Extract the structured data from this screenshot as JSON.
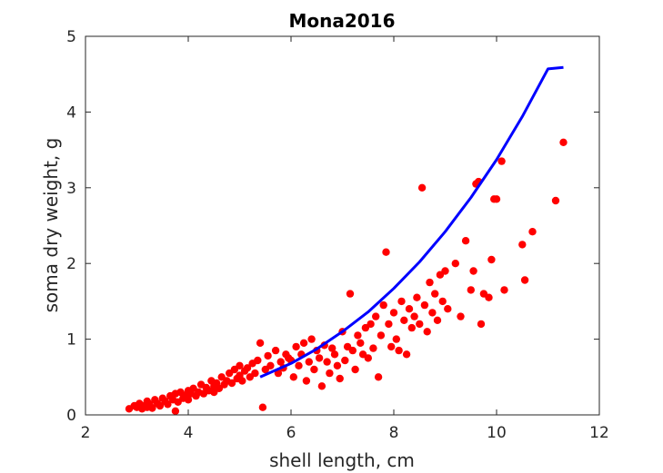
{
  "chart_data": {
    "type": "scatter",
    "title": "Mona2016",
    "xlabel": "shell length, cm",
    "ylabel": "soma dry weight, g",
    "xlim": [
      2,
      12
    ],
    "ylim": [
      0,
      5
    ],
    "xticks": [
      2,
      4,
      6,
      8,
      10,
      12
    ],
    "yticks": [
      0,
      1,
      2,
      3,
      4,
      5
    ],
    "grid": false,
    "box": true,
    "legend": "none",
    "colors": {
      "points": "#ff0000",
      "curve": "#0000ff",
      "axes": "#262626"
    },
    "series": [
      {
        "kind": "points",
        "points": [
          [
            2.85,
            0.08
          ],
          [
            2.95,
            0.12
          ],
          [
            3.0,
            0.1
          ],
          [
            3.05,
            0.15
          ],
          [
            3.1,
            0.08
          ],
          [
            3.15,
            0.12
          ],
          [
            3.2,
            0.18
          ],
          [
            3.2,
            0.1
          ],
          [
            3.25,
            0.14
          ],
          [
            3.3,
            0.09
          ],
          [
            3.35,
            0.2
          ],
          [
            3.4,
            0.15
          ],
          [
            3.45,
            0.12
          ],
          [
            3.5,
            0.22
          ],
          [
            3.55,
            0.18
          ],
          [
            3.6,
            0.14
          ],
          [
            3.65,
            0.25
          ],
          [
            3.7,
            0.2
          ],
          [
            3.75,
            0.05
          ],
          [
            3.75,
            0.28
          ],
          [
            3.8,
            0.17
          ],
          [
            3.85,
            0.3
          ],
          [
            3.9,
            0.22
          ],
          [
            3.95,
            0.26
          ],
          [
            4.0,
            0.32
          ],
          [
            4.0,
            0.2
          ],
          [
            4.05,
            0.28
          ],
          [
            4.1,
            0.35
          ],
          [
            4.15,
            0.25
          ],
          [
            4.2,
            0.3
          ],
          [
            4.25,
            0.4
          ],
          [
            4.3,
            0.28
          ],
          [
            4.35,
            0.36
          ],
          [
            4.4,
            0.32
          ],
          [
            4.45,
            0.45
          ],
          [
            4.5,
            0.38
          ],
          [
            4.5,
            0.3
          ],
          [
            4.55,
            0.42
          ],
          [
            4.6,
            0.35
          ],
          [
            4.65,
            0.5
          ],
          [
            4.7,
            0.4
          ],
          [
            4.75,
            0.45
          ],
          [
            4.8,
            0.55
          ],
          [
            4.85,
            0.42
          ],
          [
            4.9,
            0.6
          ],
          [
            4.95,
            0.48
          ],
          [
            5.0,
            0.52
          ],
          [
            5.0,
            0.65
          ],
          [
            5.05,
            0.45
          ],
          [
            5.1,
            0.58
          ],
          [
            5.15,
            0.62
          ],
          [
            5.2,
            0.5
          ],
          [
            5.25,
            0.68
          ],
          [
            5.3,
            0.55
          ],
          [
            5.35,
            0.72
          ],
          [
            5.4,
            0.95
          ],
          [
            5.45,
            0.1
          ],
          [
            5.5,
            0.6
          ],
          [
            5.55,
            0.78
          ],
          [
            5.6,
            0.65
          ],
          [
            5.7,
            0.85
          ],
          [
            5.75,
            0.55
          ],
          [
            5.8,
            0.7
          ],
          [
            5.85,
            0.62
          ],
          [
            5.9,
            0.8
          ],
          [
            5.95,
            0.75
          ],
          [
            6.0,
            0.72
          ],
          [
            6.05,
            0.5
          ],
          [
            6.1,
            0.9
          ],
          [
            6.15,
            0.65
          ],
          [
            6.2,
            0.8
          ],
          [
            6.25,
            0.95
          ],
          [
            6.3,
            0.45
          ],
          [
            6.35,
            0.7
          ],
          [
            6.4,
            1.0
          ],
          [
            6.45,
            0.6
          ],
          [
            6.5,
            0.85
          ],
          [
            6.55,
            0.75
          ],
          [
            6.6,
            0.38
          ],
          [
            6.65,
            0.92
          ],
          [
            6.7,
            0.7
          ],
          [
            6.75,
            0.55
          ],
          [
            6.8,
            0.88
          ],
          [
            6.85,
            0.8
          ],
          [
            6.9,
            0.65
          ],
          [
            6.95,
            0.48
          ],
          [
            7.0,
            1.1
          ],
          [
            7.05,
            0.72
          ],
          [
            7.1,
            0.9
          ],
          [
            7.15,
            1.6
          ],
          [
            7.2,
            0.85
          ],
          [
            7.25,
            0.6
          ],
          [
            7.3,
            1.05
          ],
          [
            7.35,
            0.95
          ],
          [
            7.4,
            0.8
          ],
          [
            7.45,
            1.15
          ],
          [
            7.5,
            0.75
          ],
          [
            7.55,
            1.2
          ],
          [
            7.6,
            0.88
          ],
          [
            7.65,
            1.3
          ],
          [
            7.7,
            0.5
          ],
          [
            7.75,
            1.05
          ],
          [
            7.8,
            1.45
          ],
          [
            7.85,
            2.15
          ],
          [
            7.9,
            1.2
          ],
          [
            7.95,
            0.9
          ],
          [
            8.0,
            1.35
          ],
          [
            8.05,
            1.0
          ],
          [
            8.1,
            0.85
          ],
          [
            8.15,
            1.5
          ],
          [
            8.2,
            1.25
          ],
          [
            8.25,
            0.8
          ],
          [
            8.3,
            1.4
          ],
          [
            8.35,
            1.15
          ],
          [
            8.4,
            1.3
          ],
          [
            8.45,
            1.55
          ],
          [
            8.5,
            1.2
          ],
          [
            8.55,
            3.0
          ],
          [
            8.6,
            1.45
          ],
          [
            8.65,
            1.1
          ],
          [
            8.7,
            1.75
          ],
          [
            8.75,
            1.35
          ],
          [
            8.8,
            1.6
          ],
          [
            8.85,
            1.25
          ],
          [
            8.9,
            1.85
          ],
          [
            8.95,
            1.5
          ],
          [
            9.0,
            1.9
          ],
          [
            9.05,
            1.4
          ],
          [
            9.2,
            2.0
          ],
          [
            9.3,
            1.3
          ],
          [
            9.4,
            2.3
          ],
          [
            9.5,
            1.65
          ],
          [
            9.55,
            1.9
          ],
          [
            9.6,
            3.05
          ],
          [
            9.65,
            3.08
          ],
          [
            9.7,
            1.2
          ],
          [
            9.75,
            1.6
          ],
          [
            9.85,
            1.55
          ],
          [
            9.9,
            2.05
          ],
          [
            9.95,
            2.85
          ],
          [
            10.0,
            2.85
          ],
          [
            10.1,
            3.35
          ],
          [
            10.15,
            1.65
          ],
          [
            10.5,
            2.25
          ],
          [
            10.55,
            1.78
          ],
          [
            10.7,
            2.42
          ],
          [
            11.15,
            2.83
          ],
          [
            11.3,
            3.6
          ]
        ]
      },
      {
        "kind": "curve",
        "x": [
          5.4,
          6.0,
          6.5,
          7.0,
          7.5,
          8.0,
          8.5,
          9.0,
          9.5,
          10.0,
          10.5,
          11.0,
          11.3
        ],
        "y": [
          0.5,
          0.68,
          0.87,
          1.1,
          1.36,
          1.67,
          2.02,
          2.42,
          2.87,
          3.37,
          3.94,
          4.57,
          4.59
        ]
      }
    ]
  }
}
